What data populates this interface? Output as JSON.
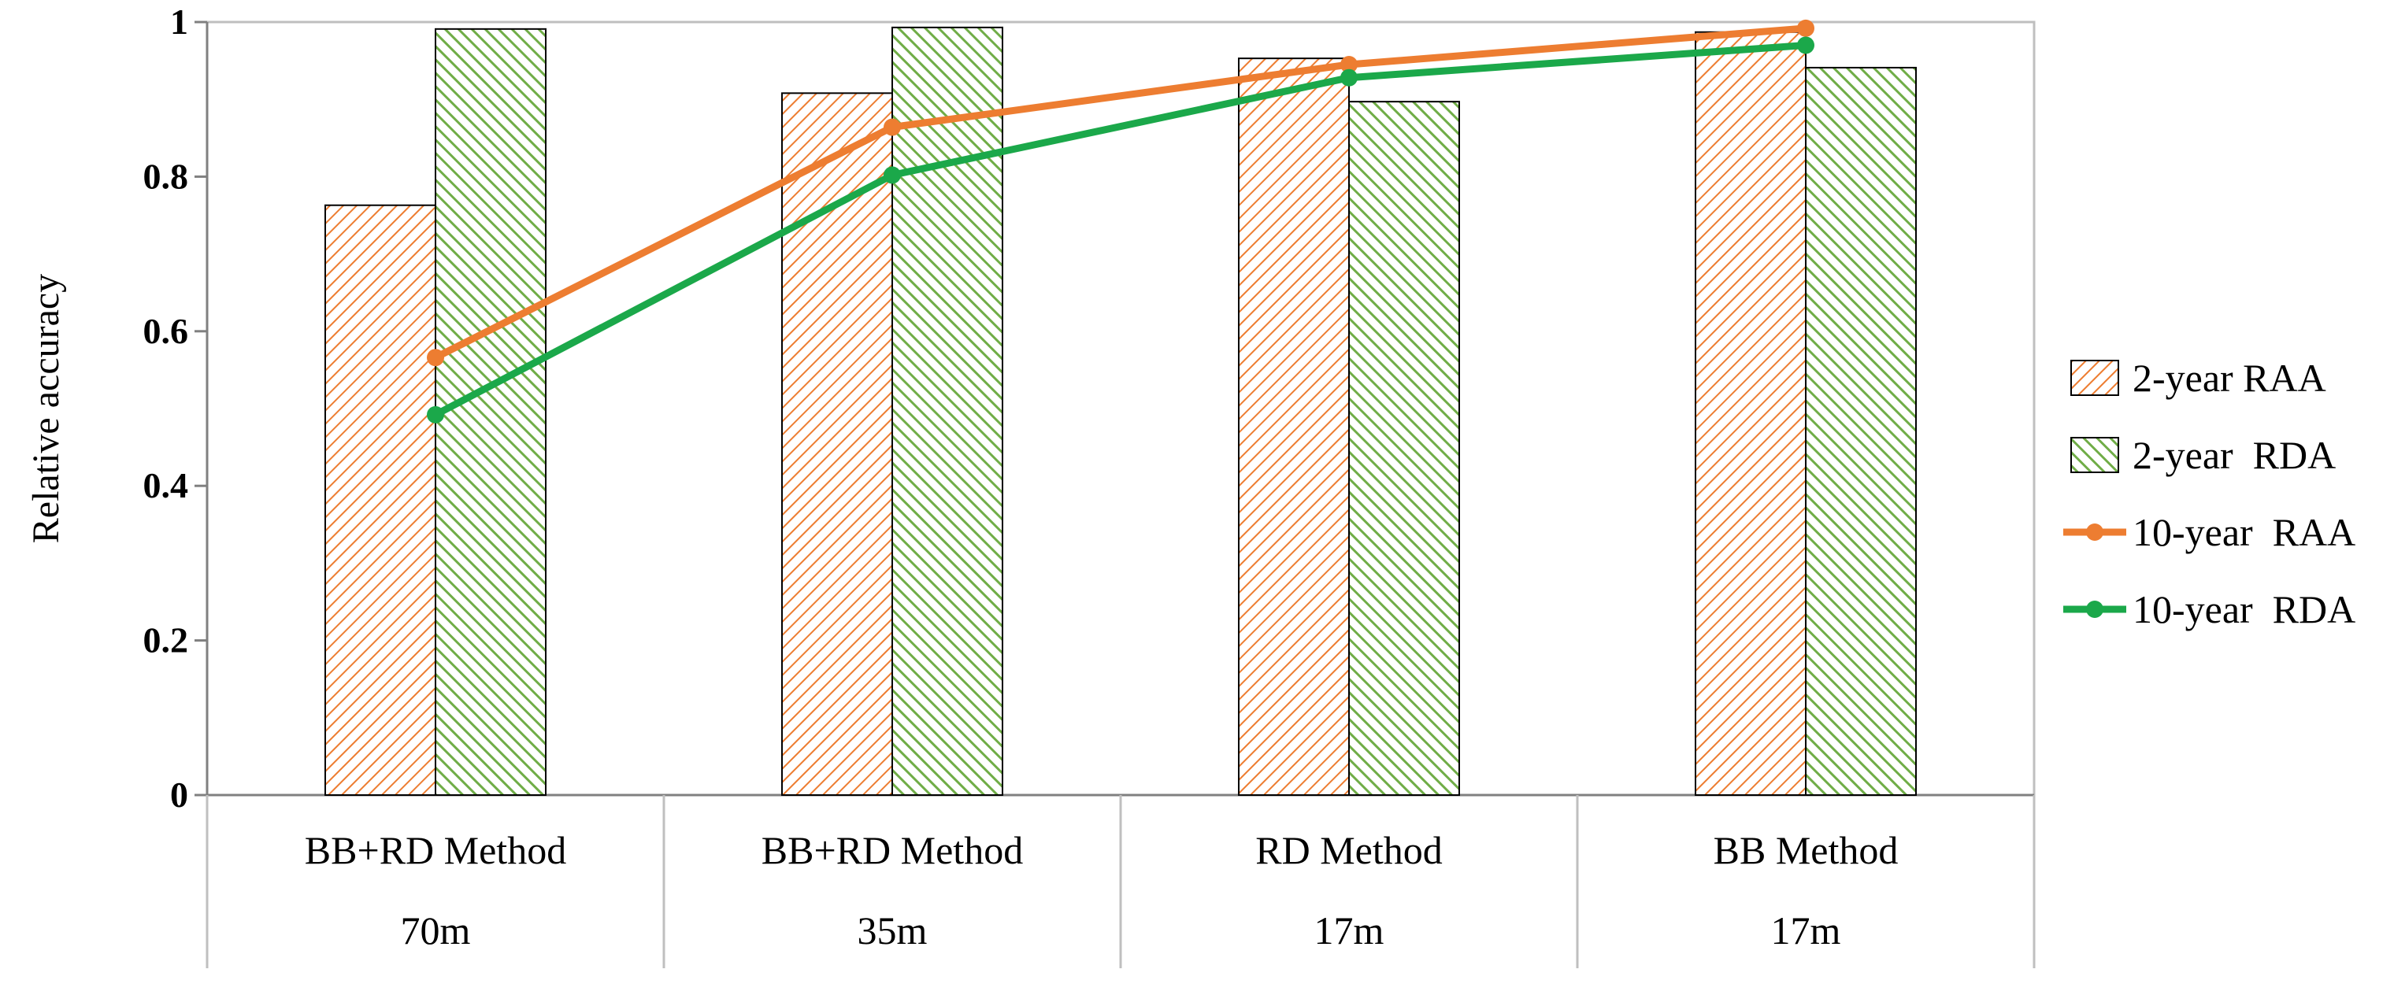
{
  "chart_data": {
    "type": "bar",
    "title": "",
    "ylabel": "Relative accuracy",
    "xlabel": "",
    "ylim": [
      0,
      1
    ],
    "yticks": [
      0,
      0.2,
      0.4,
      0.6,
      0.8,
      1
    ],
    "ytick_labels": [
      "0",
      "0.2",
      "0.4",
      "0.6",
      "0.8",
      "1"
    ],
    "grid": false,
    "legend_position": "right",
    "categories": [
      {
        "method": "BB+RD Method",
        "resolution": "70m"
      },
      {
        "method": "BB+RD Method",
        "resolution": "35m"
      },
      {
        "method": "RD Method",
        "resolution": "17m"
      },
      {
        "method": "BB Method",
        "resolution": "17m"
      }
    ],
    "series": [
      {
        "name": "2-year RAA",
        "kind": "bar",
        "pattern": "hatch",
        "color": "#ED7D31",
        "values": [
          0.763,
          0.908,
          0.953,
          0.987
        ]
      },
      {
        "name": "2-year  RDA",
        "kind": "bar",
        "pattern": "hatch",
        "color": "#70AD47",
        "values": [
          0.991,
          0.993,
          0.897,
          0.941
        ]
      },
      {
        "name": "10-year  RAA",
        "kind": "line",
        "marker": "circle",
        "color": "#ED7D31",
        "values": [
          0.566,
          0.864,
          0.945,
          0.992
        ]
      },
      {
        "name": "10-year  RDA",
        "kind": "line",
        "marker": "circle",
        "color": "#1BA84A",
        "values": [
          0.492,
          0.802,
          0.928,
          0.97
        ]
      }
    ]
  }
}
